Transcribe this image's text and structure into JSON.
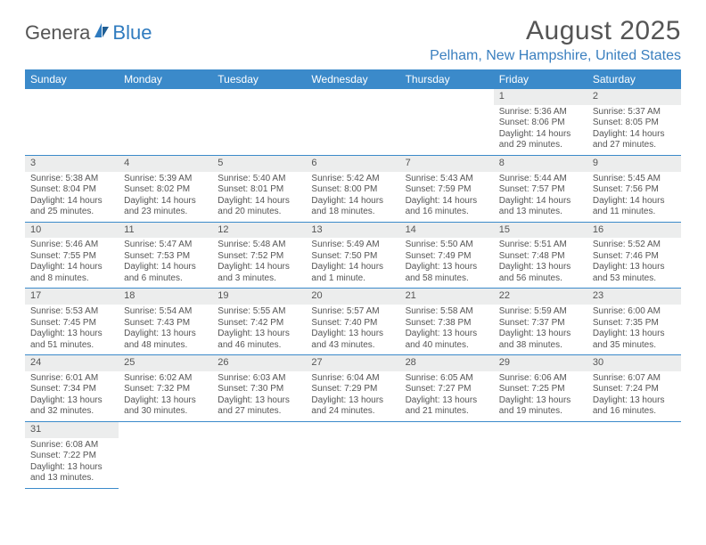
{
  "logo": {
    "part1": "Genera",
    "part2": "Blue"
  },
  "title": "August 2025",
  "location": "Pelham, New Hampshire, United States",
  "colors": {
    "header_bg": "#3b8aca",
    "accent": "#3a7fbf",
    "daynum_bg": "#eceded",
    "text": "#555555",
    "page_bg": "#ffffff"
  },
  "typography": {
    "title_fontsize": 30,
    "location_fontsize": 16,
    "header_fontsize": 12,
    "cell_fontsize": 10
  },
  "day_headers": [
    "Sunday",
    "Monday",
    "Tuesday",
    "Wednesday",
    "Thursday",
    "Friday",
    "Saturday"
  ],
  "weeks": [
    [
      null,
      null,
      null,
      null,
      null,
      {
        "n": "1",
        "sr": "Sunrise: 5:36 AM",
        "ss": "Sunset: 8:06 PM",
        "dl1": "Daylight: 14 hours",
        "dl2": "and 29 minutes."
      },
      {
        "n": "2",
        "sr": "Sunrise: 5:37 AM",
        "ss": "Sunset: 8:05 PM",
        "dl1": "Daylight: 14 hours",
        "dl2": "and 27 minutes."
      }
    ],
    [
      {
        "n": "3",
        "sr": "Sunrise: 5:38 AM",
        "ss": "Sunset: 8:04 PM",
        "dl1": "Daylight: 14 hours",
        "dl2": "and 25 minutes."
      },
      {
        "n": "4",
        "sr": "Sunrise: 5:39 AM",
        "ss": "Sunset: 8:02 PM",
        "dl1": "Daylight: 14 hours",
        "dl2": "and 23 minutes."
      },
      {
        "n": "5",
        "sr": "Sunrise: 5:40 AM",
        "ss": "Sunset: 8:01 PM",
        "dl1": "Daylight: 14 hours",
        "dl2": "and 20 minutes."
      },
      {
        "n": "6",
        "sr": "Sunrise: 5:42 AM",
        "ss": "Sunset: 8:00 PM",
        "dl1": "Daylight: 14 hours",
        "dl2": "and 18 minutes."
      },
      {
        "n": "7",
        "sr": "Sunrise: 5:43 AM",
        "ss": "Sunset: 7:59 PM",
        "dl1": "Daylight: 14 hours",
        "dl2": "and 16 minutes."
      },
      {
        "n": "8",
        "sr": "Sunrise: 5:44 AM",
        "ss": "Sunset: 7:57 PM",
        "dl1": "Daylight: 14 hours",
        "dl2": "and 13 minutes."
      },
      {
        "n": "9",
        "sr": "Sunrise: 5:45 AM",
        "ss": "Sunset: 7:56 PM",
        "dl1": "Daylight: 14 hours",
        "dl2": "and 11 minutes."
      }
    ],
    [
      {
        "n": "10",
        "sr": "Sunrise: 5:46 AM",
        "ss": "Sunset: 7:55 PM",
        "dl1": "Daylight: 14 hours",
        "dl2": "and 8 minutes."
      },
      {
        "n": "11",
        "sr": "Sunrise: 5:47 AM",
        "ss": "Sunset: 7:53 PM",
        "dl1": "Daylight: 14 hours",
        "dl2": "and 6 minutes."
      },
      {
        "n": "12",
        "sr": "Sunrise: 5:48 AM",
        "ss": "Sunset: 7:52 PM",
        "dl1": "Daylight: 14 hours",
        "dl2": "and 3 minutes."
      },
      {
        "n": "13",
        "sr": "Sunrise: 5:49 AM",
        "ss": "Sunset: 7:50 PM",
        "dl1": "Daylight: 14 hours",
        "dl2": "and 1 minute."
      },
      {
        "n": "14",
        "sr": "Sunrise: 5:50 AM",
        "ss": "Sunset: 7:49 PM",
        "dl1": "Daylight: 13 hours",
        "dl2": "and 58 minutes."
      },
      {
        "n": "15",
        "sr": "Sunrise: 5:51 AM",
        "ss": "Sunset: 7:48 PM",
        "dl1": "Daylight: 13 hours",
        "dl2": "and 56 minutes."
      },
      {
        "n": "16",
        "sr": "Sunrise: 5:52 AM",
        "ss": "Sunset: 7:46 PM",
        "dl1": "Daylight: 13 hours",
        "dl2": "and 53 minutes."
      }
    ],
    [
      {
        "n": "17",
        "sr": "Sunrise: 5:53 AM",
        "ss": "Sunset: 7:45 PM",
        "dl1": "Daylight: 13 hours",
        "dl2": "and 51 minutes."
      },
      {
        "n": "18",
        "sr": "Sunrise: 5:54 AM",
        "ss": "Sunset: 7:43 PM",
        "dl1": "Daylight: 13 hours",
        "dl2": "and 48 minutes."
      },
      {
        "n": "19",
        "sr": "Sunrise: 5:55 AM",
        "ss": "Sunset: 7:42 PM",
        "dl1": "Daylight: 13 hours",
        "dl2": "and 46 minutes."
      },
      {
        "n": "20",
        "sr": "Sunrise: 5:57 AM",
        "ss": "Sunset: 7:40 PM",
        "dl1": "Daylight: 13 hours",
        "dl2": "and 43 minutes."
      },
      {
        "n": "21",
        "sr": "Sunrise: 5:58 AM",
        "ss": "Sunset: 7:38 PM",
        "dl1": "Daylight: 13 hours",
        "dl2": "and 40 minutes."
      },
      {
        "n": "22",
        "sr": "Sunrise: 5:59 AM",
        "ss": "Sunset: 7:37 PM",
        "dl1": "Daylight: 13 hours",
        "dl2": "and 38 minutes."
      },
      {
        "n": "23",
        "sr": "Sunrise: 6:00 AM",
        "ss": "Sunset: 7:35 PM",
        "dl1": "Daylight: 13 hours",
        "dl2": "and 35 minutes."
      }
    ],
    [
      {
        "n": "24",
        "sr": "Sunrise: 6:01 AM",
        "ss": "Sunset: 7:34 PM",
        "dl1": "Daylight: 13 hours",
        "dl2": "and 32 minutes."
      },
      {
        "n": "25",
        "sr": "Sunrise: 6:02 AM",
        "ss": "Sunset: 7:32 PM",
        "dl1": "Daylight: 13 hours",
        "dl2": "and 30 minutes."
      },
      {
        "n": "26",
        "sr": "Sunrise: 6:03 AM",
        "ss": "Sunset: 7:30 PM",
        "dl1": "Daylight: 13 hours",
        "dl2": "and 27 minutes."
      },
      {
        "n": "27",
        "sr": "Sunrise: 6:04 AM",
        "ss": "Sunset: 7:29 PM",
        "dl1": "Daylight: 13 hours",
        "dl2": "and 24 minutes."
      },
      {
        "n": "28",
        "sr": "Sunrise: 6:05 AM",
        "ss": "Sunset: 7:27 PM",
        "dl1": "Daylight: 13 hours",
        "dl2": "and 21 minutes."
      },
      {
        "n": "29",
        "sr": "Sunrise: 6:06 AM",
        "ss": "Sunset: 7:25 PM",
        "dl1": "Daylight: 13 hours",
        "dl2": "and 19 minutes."
      },
      {
        "n": "30",
        "sr": "Sunrise: 6:07 AM",
        "ss": "Sunset: 7:24 PM",
        "dl1": "Daylight: 13 hours",
        "dl2": "and 16 minutes."
      }
    ],
    [
      {
        "n": "31",
        "sr": "Sunrise: 6:08 AM",
        "ss": "Sunset: 7:22 PM",
        "dl1": "Daylight: 13 hours",
        "dl2": "and 13 minutes."
      },
      null,
      null,
      null,
      null,
      null,
      null
    ]
  ]
}
